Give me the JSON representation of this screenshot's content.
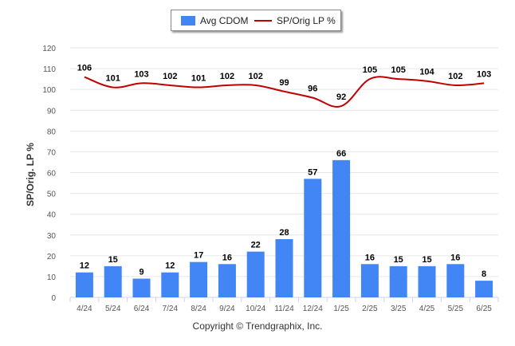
{
  "legend": {
    "bar_label": "Avg CDOM",
    "line_label": "SP/Orig LP %"
  },
  "copyright": "Copyright © Trendgraphix, Inc.",
  "chart_data": {
    "type": "bar",
    "categories": [
      "4/24",
      "5/24",
      "6/24",
      "7/24",
      "8/24",
      "9/24",
      "10/24",
      "11/24",
      "12/24",
      "1/25",
      "2/25",
      "3/25",
      "4/25",
      "5/25",
      "6/25"
    ],
    "series": [
      {
        "name": "Avg CDOM",
        "type": "bar",
        "color": "#4285f4",
        "values": [
          12,
          15,
          9,
          12,
          17,
          16,
          22,
          28,
          57,
          66,
          16,
          15,
          15,
          16,
          8
        ]
      },
      {
        "name": "SP/Orig LP %",
        "type": "line",
        "color": "#c00000",
        "values": [
          106,
          101,
          103,
          102,
          101,
          102,
          102,
          99,
          96,
          92,
          105,
          105,
          104,
          102,
          103
        ]
      }
    ],
    "ylabel": "SP/Orig. LP %",
    "ylim": [
      0,
      120
    ],
    "yticks": [
      0,
      10,
      20,
      30,
      40,
      50,
      60,
      70,
      80,
      90,
      100,
      110,
      120
    ],
    "grid": true,
    "legend_position": "top-center"
  }
}
